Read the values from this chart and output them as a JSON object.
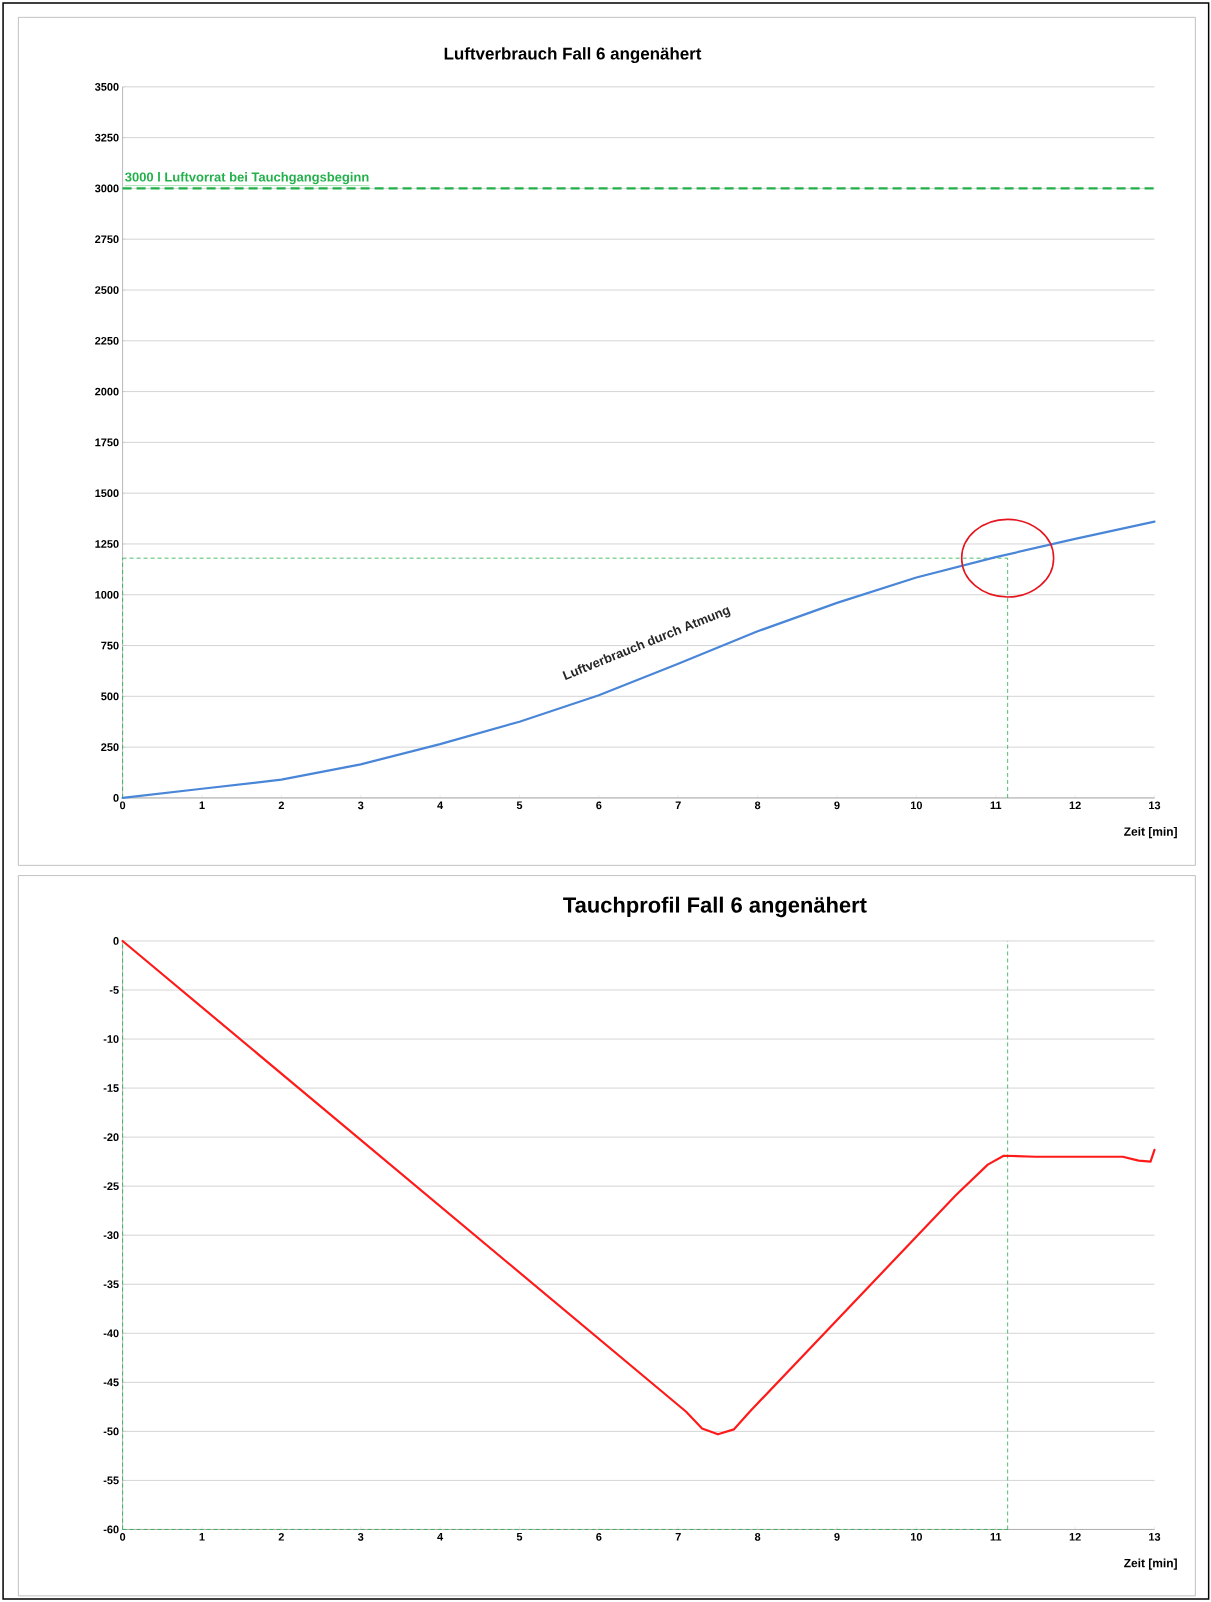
{
  "chart_data": [
    {
      "type": "line",
      "title": "Luftverbrauch Fall 6 angenähert",
      "xlabel": "Zeit [min]",
      "x": [
        0,
        1,
        2,
        3,
        4,
        5,
        6,
        7,
        8,
        9,
        10,
        11,
        12,
        13
      ],
      "series": [
        {
          "color": "#4a86d8",
          "values": [
            0,
            45,
            90,
            165,
            265,
            375,
            505,
            660,
            820,
            960,
            1085,
            1185,
            1275,
            1360
          ]
        }
      ],
      "xlim": [
        0,
        13
      ],
      "xticks": [
        0,
        1,
        2,
        3,
        4,
        5,
        6,
        7,
        8,
        9,
        10,
        11,
        12,
        13
      ],
      "ylim": [
        0,
        3500
      ],
      "yticks": [
        0,
        250,
        500,
        750,
        1000,
        1250,
        1500,
        1750,
        2000,
        2250,
        2500,
        2750,
        3000,
        3250,
        3500
      ],
      "grid": "y",
      "marker": "none",
      "line_style": "solid",
      "ref_lines": [
        {
          "axis": "y",
          "value": 3000,
          "label": "3000 l Luftvorrat bei Tauchgangsbeginn",
          "color": "#22b04a",
          "line_style": "dashed"
        },
        {
          "axis": "y",
          "value": 1180,
          "label": null,
          "color": "#22b04a",
          "line_style": "dotted"
        },
        {
          "axis": "x",
          "value": 0,
          "label": null,
          "color": "#22b04a",
          "line_style": "dotted"
        },
        {
          "axis": "x",
          "value": 11.15,
          "label": null,
          "color": "#22b04a",
          "line_style": "dotted"
        }
      ],
      "annotations": [
        "Luftverbrauch durch Atmung"
      ]
    },
    {
      "type": "line",
      "title": "Tauchprofil Fall 6 angenähert",
      "xlabel": "Zeit [min]",
      "x": [
        0,
        7.1,
        7.3,
        7.5,
        7.7,
        7.9,
        10.5,
        10.9,
        11.1,
        11.5,
        12.6,
        12.8,
        12.95,
        13
      ],
      "series": [
        {
          "color": "#ff1a1a",
          "values": [
            0,
            -48,
            -49.7,
            -50.3,
            -49.8,
            -48,
            -25.9,
            -22.8,
            -21.9,
            -22,
            -22,
            -22.4,
            -22.5,
            -21.3
          ]
        }
      ],
      "xlim": [
        0,
        13
      ],
      "xticks": [
        0,
        1,
        2,
        3,
        4,
        5,
        6,
        7,
        8,
        9,
        10,
        11,
        12,
        13
      ],
      "ylim": [
        -60,
        0
      ],
      "yticks": [
        0,
        -5,
        -10,
        -15,
        -20,
        -25,
        -30,
        -35,
        -40,
        -45,
        -50,
        -55,
        -60
      ],
      "grid": "y",
      "marker": "none",
      "line_style": "solid",
      "ref_lines": [
        {
          "axis": "y",
          "value": -60,
          "label": null,
          "color": "#22b04a",
          "line_style": "dotted"
        },
        {
          "axis": "x",
          "value": 0,
          "label": null,
          "color": "#22b04a",
          "line_style": "dotted"
        },
        {
          "axis": "x",
          "value": 11.15,
          "label": null,
          "color": "#22b04a",
          "line_style": "dotted"
        }
      ]
    }
  ]
}
